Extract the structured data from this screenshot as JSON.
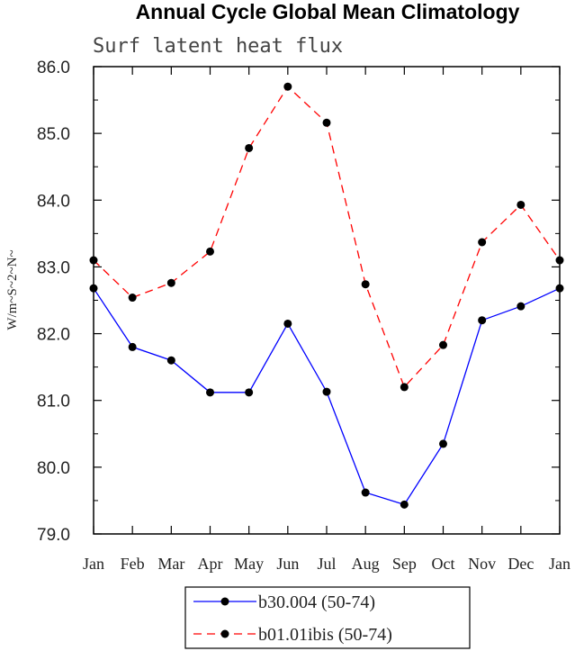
{
  "chart_data": {
    "type": "line",
    "title": "Annual Cycle Global Mean Climatology",
    "subtitle": "Surf latent heat flux",
    "ylabel": "W/m~S~2~N~",
    "xlabel": "",
    "ylim": [
      79.0,
      86.0
    ],
    "yticks": [
      "79.0",
      "80.0",
      "81.0",
      "82.0",
      "83.0",
      "84.0",
      "85.0",
      "86.0"
    ],
    "categories": [
      "Jan",
      "Feb",
      "Mar",
      "Apr",
      "May",
      "Jun",
      "Jul",
      "Aug",
      "Sep",
      "Oct",
      "Nov",
      "Dec",
      "Jan"
    ],
    "series": [
      {
        "name": "b30.004 (50-74)",
        "color": "#0000ff",
        "dash": "solid",
        "values": [
          82.68,
          81.8,
          81.6,
          81.12,
          81.12,
          82.15,
          81.13,
          79.62,
          79.44,
          80.35,
          82.2,
          82.41,
          82.68
        ]
      },
      {
        "name": "b01.01ibis (50-74)",
        "color": "#ff0000",
        "dash": "dashed",
        "values": [
          83.1,
          82.54,
          82.76,
          83.23,
          84.78,
          85.7,
          85.16,
          82.74,
          81.2,
          81.83,
          83.37,
          83.93,
          83.1
        ]
      }
    ],
    "legend_position": "bottom-center"
  }
}
